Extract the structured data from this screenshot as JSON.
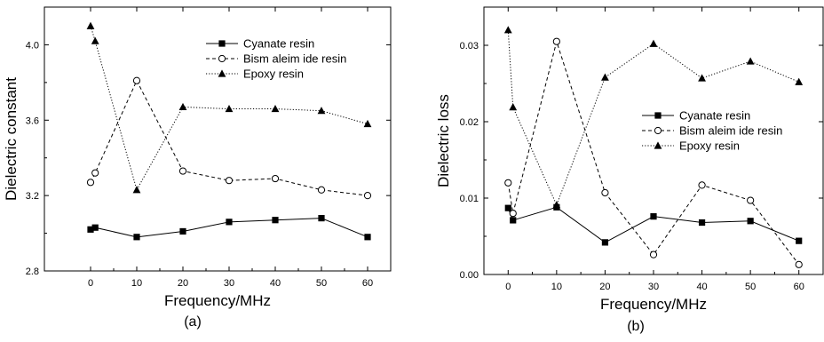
{
  "chart_data": [
    {
      "type": "line",
      "panel_label": "(a)",
      "xlabel": "Frequency/MHz",
      "ylabel": "Dielectric constant",
      "xlim": [
        -10,
        65
      ],
      "ylim": [
        2.8,
        4.2
      ],
      "xticks": [
        0,
        10,
        20,
        30,
        40,
        50,
        60
      ],
      "yticks": [
        2.8,
        3.2,
        3.6,
        4.0
      ],
      "ytick_labels": [
        "2.8",
        "3.2",
        "3.6",
        "4.0"
      ],
      "grid": false,
      "legend_position": "top-right",
      "series": [
        {
          "name": "Cyanate resin",
          "marker": "filled-square",
          "line_style": "solid",
          "x": [
            0,
            1,
            10,
            20,
            30,
            40,
            50,
            60
          ],
          "y": [
            3.02,
            3.03,
            2.98,
            3.01,
            3.06,
            3.07,
            3.08,
            2.98
          ]
        },
        {
          "name": "Bism aleim ide resin",
          "marker": "open-circle",
          "line_style": "dashed",
          "x": [
            0,
            1,
            10,
            20,
            30,
            40,
            50,
            60
          ],
          "y": [
            3.27,
            3.32,
            3.81,
            3.33,
            3.28,
            3.29,
            3.23,
            3.2
          ]
        },
        {
          "name": "Epoxy resin",
          "marker": "filled-triangle",
          "line_style": "dotted",
          "x": [
            0,
            1,
            10,
            20,
            30,
            40,
            50,
            60
          ],
          "y": [
            4.1,
            4.02,
            3.23,
            3.67,
            3.66,
            3.66,
            3.65,
            3.58
          ]
        }
      ]
    },
    {
      "type": "line",
      "panel_label": "(b)",
      "xlabel": "Frequency/MHz",
      "ylabel": "Dielectric loss",
      "xlim": [
        -5,
        65
      ],
      "ylim": [
        0.0,
        0.035
      ],
      "xticks": [
        0,
        10,
        20,
        30,
        40,
        50,
        60
      ],
      "yticks": [
        0.0,
        0.01,
        0.02,
        0.03
      ],
      "ytick_labels": [
        "0.00",
        "0.01",
        "0.02",
        "0.03"
      ],
      "grid": false,
      "legend_position": "center-right",
      "series": [
        {
          "name": "Cyanate resin",
          "marker": "filled-square",
          "line_style": "solid",
          "x": [
            0,
            1,
            10,
            20,
            30,
            40,
            50,
            60
          ],
          "y": [
            0.0087,
            0.0071,
            0.0088,
            0.0042,
            0.0076,
            0.0068,
            0.007,
            0.0044
          ]
        },
        {
          "name": "Bism aleim ide resin",
          "marker": "open-circle",
          "line_style": "dashed",
          "x": [
            0,
            1,
            10,
            20,
            30,
            40,
            50,
            60
          ],
          "y": [
            0.012,
            0.008,
            0.0305,
            0.0107,
            0.0026,
            0.0117,
            0.0097,
            0.0013
          ]
        },
        {
          "name": "Epoxy resin",
          "marker": "filled-triangle",
          "line_style": "dotted",
          "x": [
            0,
            1,
            10,
            20,
            30,
            40,
            50,
            60
          ],
          "y": [
            0.032,
            0.0219,
            0.0091,
            0.0258,
            0.0302,
            0.0257,
            0.0279,
            0.0252
          ]
        }
      ]
    }
  ]
}
